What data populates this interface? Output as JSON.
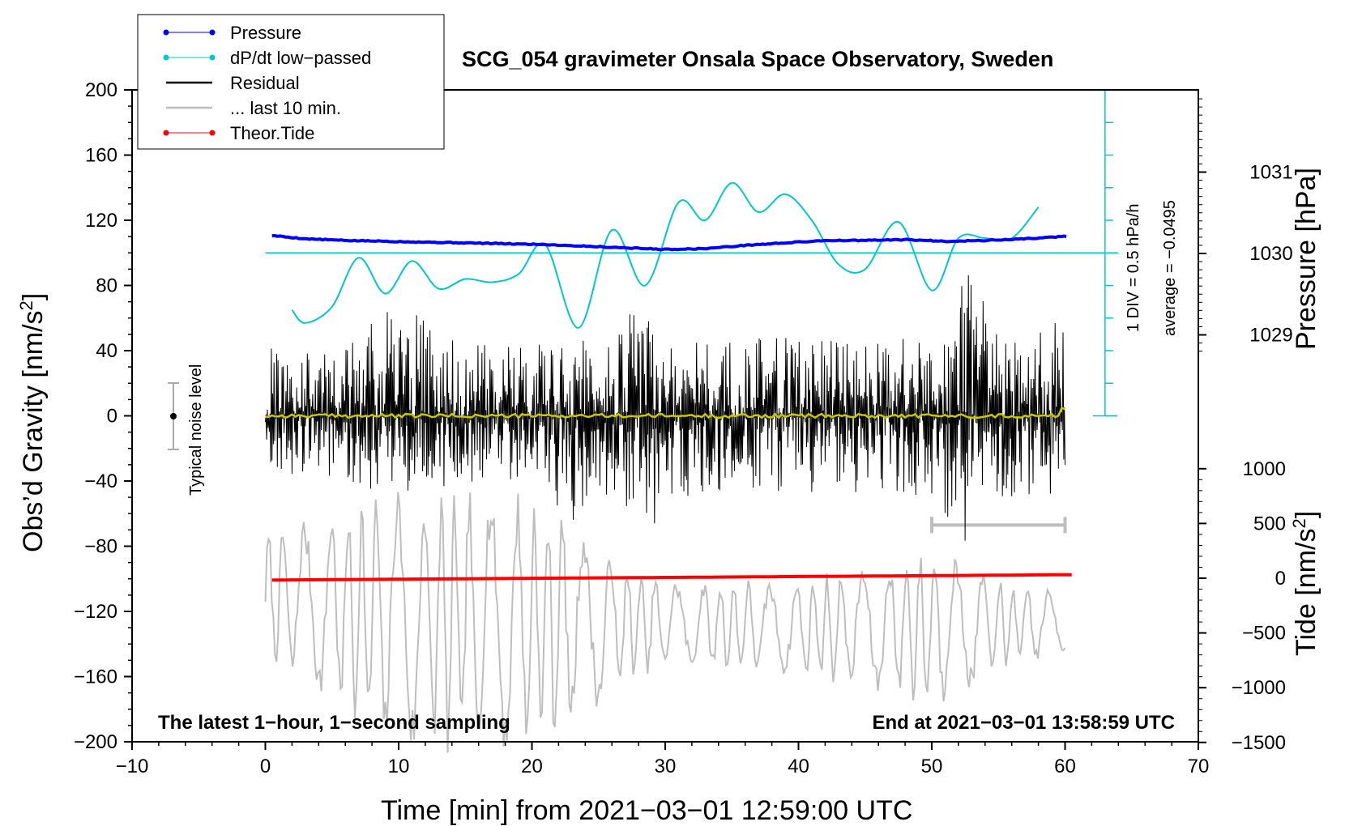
{
  "chart_data": {
    "type": "line",
    "title": "SCG_054 gravimeter Onsala Space Observatory, Sweden",
    "xlabel": "Time [min] from 2021−03−01 12:59:00 UTC",
    "ylabel_left": "Obs’d Gravity [nm/s",
    "ylabel_left_sup": "2",
    "ylabel_left_end": "]",
    "ylabel_right_pressure": "Pressure [hPa]",
    "ylabel_right_tide": "Tide [nm/s",
    "ylabel_right_tide_sup": "2",
    "ylabel_right_tide_end": "]",
    "xlim": [
      -10,
      70
    ],
    "ylim_left": [
      -200,
      200
    ],
    "x_ticks": [
      "−10",
      "0",
      "10",
      "20",
      "30",
      "40",
      "50",
      "60",
      "70"
    ],
    "y_ticks_left": [
      "200",
      "160",
      "120",
      "80",
      "40",
      "0",
      "−40",
      "−80",
      "−120",
      "−160",
      "−200"
    ],
    "pressure_ticks": [
      "1031",
      "1030",
      "1029"
    ],
    "tide_ticks": [
      "1000",
      "500",
      "0",
      "−500",
      "−1000",
      "−1500"
    ],
    "note_left": "The latest 1−hour, 1−second sampling",
    "note_right": "End at 2021−03−01 13:58:59 UTC",
    "scale_label_1": "1 DIV = 0.5 hPa/h",
    "scale_label_2": "average = −0.0495",
    "noise_label": "Typical noise level",
    "legend": [
      {
        "name": "Pressure",
        "color": "#0000ff",
        "marker": true
      },
      {
        "name": "dP/dt low−passed",
        "color": "#00c8c8",
        "marker": true
      },
      {
        "name": "Residual",
        "color": "#000000",
        "marker": false
      },
      {
        "name": "... last 10 min.",
        "color": "#bebebe",
        "marker": false
      },
      {
        "name": "Theor.Tide",
        "color": "#ff0000",
        "marker": true
      }
    ],
    "series": [
      {
        "name": "Pressure",
        "unit": "hPa",
        "x": [
          0.5,
          3,
          6,
          9,
          12,
          15,
          18,
          21,
          24,
          27,
          30,
          33,
          36,
          39,
          42,
          45,
          48,
          51,
          54,
          57,
          60
        ],
        "values": [
          1030.22,
          1030.18,
          1030.16,
          1030.15,
          1030.14,
          1030.13,
          1030.12,
          1030.11,
          1030.09,
          1030.07,
          1030.05,
          1030.06,
          1030.1,
          1030.13,
          1030.16,
          1030.16,
          1030.17,
          1030.15,
          1030.16,
          1030.18,
          1030.21
        ]
      },
      {
        "name": "dP/dt low-passed",
        "unit": "nm/s2-scaled",
        "x": [
          2,
          3,
          5,
          7,
          9,
          11,
          13,
          15,
          17,
          19,
          21,
          23.5,
          26,
          28.5,
          31,
          33,
          35,
          37,
          39,
          41,
          43,
          45,
          47.5,
          50,
          52,
          54,
          56,
          58
        ],
        "values": [
          65,
          57,
          67,
          97,
          75,
          95,
          78,
          84,
          82,
          87,
          105,
          54,
          114,
          80,
          131,
          120,
          143,
          125,
          136,
          120,
          93,
          90,
          119,
          77,
          109,
          109,
          109,
          128
        ]
      },
      {
        "name": "Residual",
        "unit": "nm/s2",
        "x": [
          0,
          5,
          10,
          15,
          20,
          23.5,
          25,
          29,
          30,
          35,
          40,
          45,
          50,
          52.5,
          55,
          58,
          60
        ],
        "envelope_max": [
          42,
          38,
          72,
          44,
          42,
          55,
          45,
          75,
          50,
          48,
          48,
          50,
          46,
          90,
          55,
          50,
          66
        ],
        "envelope_min": [
          -35,
          -38,
          -50,
          -42,
          -38,
          -70,
          -45,
          -70,
          -55,
          -45,
          -48,
          -50,
          -48,
          -82,
          -55,
          -50,
          -65
        ]
      },
      {
        "name": "... last 10 min.",
        "unit": "nm/s2",
        "x": [
          0,
          10,
          20,
          30,
          40,
          50,
          60
        ],
        "envelope_max": [
          -70,
          -40,
          -45,
          -100,
          -100,
          -80,
          -110
        ],
        "envelope_min": [
          -150,
          -210,
          -210,
          -155,
          -160,
          -180,
          -145
        ]
      },
      {
        "name": "Theor.Tide",
        "unit": "nm/s2",
        "x": [
          0.5,
          60.5
        ],
        "values": [
          -17,
          32
        ]
      }
    ]
  }
}
